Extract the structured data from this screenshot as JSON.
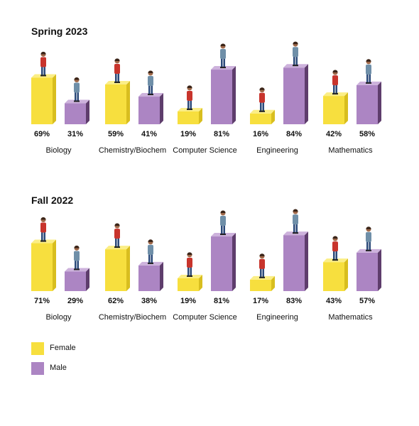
{
  "colors": {
    "female_front": "#F7DF3E",
    "female_side": "#D8BE1F",
    "female_top": "#FBEE86",
    "male_front": "#AC85C3",
    "male_side": "#5E3D6C",
    "male_top": "#CDB2DC"
  },
  "chart_data": [
    {
      "type": "bar",
      "title": "Spring 2023",
      "categories": [
        "Biology",
        "Chemistry/Biochem",
        "Computer Science",
        "Engineering",
        "Mathematics"
      ],
      "series": [
        {
          "name": "Female",
          "values": [
            69,
            59,
            19,
            16,
            42
          ],
          "labels": [
            "69%",
            "59%",
            "19%",
            "16%",
            "42%"
          ]
        },
        {
          "name": "Male",
          "values": [
            31,
            41,
            81,
            84,
            58
          ],
          "labels": [
            "31%",
            "41%",
            "81%",
            "84%",
            "58%"
          ]
        }
      ],
      "ylim": [
        0,
        100
      ]
    },
    {
      "type": "bar",
      "title": "Fall 2022",
      "categories": [
        "Biology",
        "Chemistry/Biochem",
        "Computer Science",
        "Engineering",
        "Mathematics"
      ],
      "series": [
        {
          "name": "Female",
          "values": [
            71,
            62,
            19,
            17,
            43
          ],
          "labels": [
            "71%",
            "62%",
            "19%",
            "17%",
            "43%"
          ]
        },
        {
          "name": "Male",
          "values": [
            29,
            38,
            81,
            83,
            57
          ],
          "labels": [
            "29%",
            "38%",
            "81%",
            "83%",
            "57%"
          ]
        }
      ],
      "ylim": [
        0,
        100
      ]
    }
  ],
  "legend": [
    {
      "label": "Female",
      "color": "#F7DF3E"
    },
    {
      "label": "Male",
      "color": "#AC85C3"
    }
  ]
}
